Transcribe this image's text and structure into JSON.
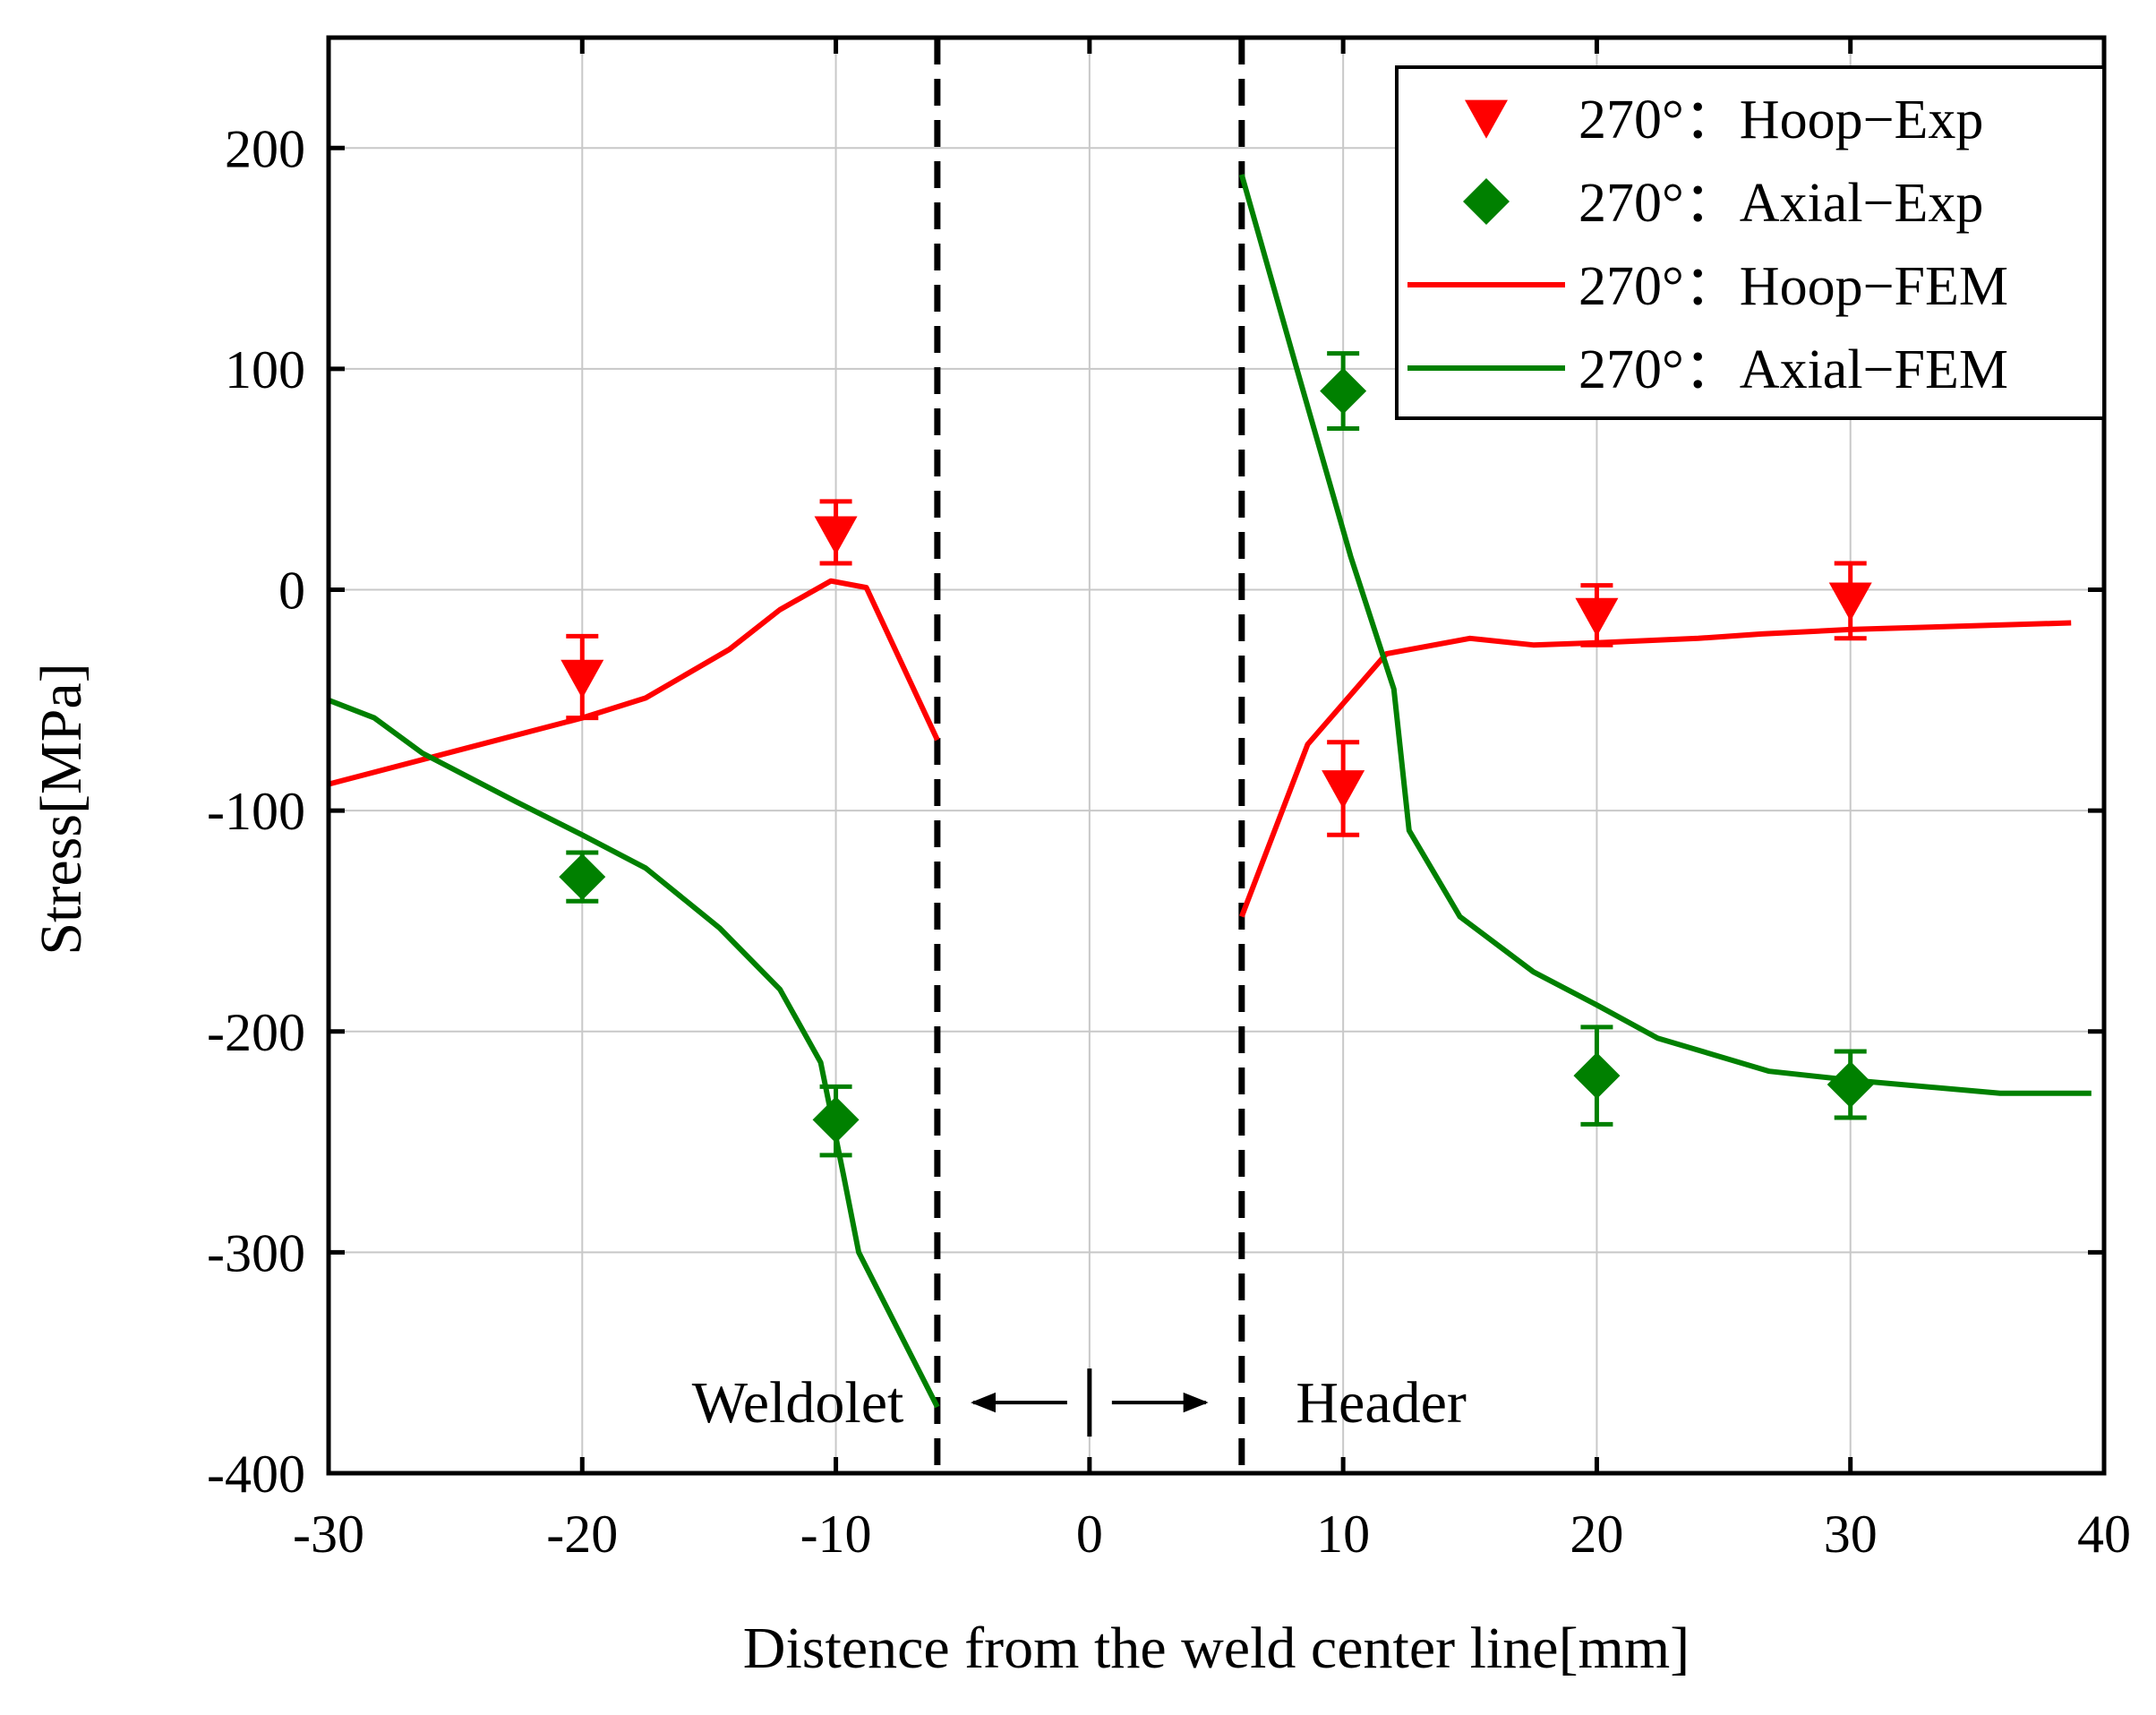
{
  "colors": {
    "hoop": "#ff0000",
    "axial": "#008000",
    "grid": "#c8c8c8",
    "axis": "#000000"
  },
  "chart_data": {
    "type": "scatter",
    "title": "",
    "xlabel": "Distence from the weld center line[mm]",
    "ylabel": "Stress[MPa]",
    "xlim": [
      -30,
      40
    ],
    "ylim": [
      -400,
      250
    ],
    "xticks": [
      -30,
      -20,
      -10,
      0,
      10,
      20,
      30,
      40
    ],
    "yticks": [
      -400,
      -300,
      -200,
      -100,
      0,
      100,
      200
    ],
    "grid": true,
    "legend_position": "top-right",
    "series": [
      {
        "name": "270°：Hoop−Exp",
        "kind": "marker",
        "marker": "triangle-down",
        "color": "#ff0000",
        "points": [
          {
            "x": -20,
            "y": -40,
            "err_low": -58,
            "err_high": -21
          },
          {
            "x": -10,
            "y": 25,
            "err_low": 12,
            "err_high": 40
          },
          {
            "x": 10,
            "y": -90,
            "err_low": -111,
            "err_high": -69
          },
          {
            "x": 20,
            "y": -12,
            "err_low": -25,
            "err_high": 2
          },
          {
            "x": 30,
            "y": -5,
            "err_low": -22,
            "err_high": 12
          }
        ]
      },
      {
        "name": "270°：Axial−Exp",
        "kind": "marker",
        "marker": "diamond",
        "color": "#008000",
        "points": [
          {
            "x": -20,
            "y": -130,
            "err_low": -141,
            "err_high": -119
          },
          {
            "x": -10,
            "y": -240,
            "err_low": -256,
            "err_high": -225
          },
          {
            "x": 10,
            "y": 90,
            "err_low": 73,
            "err_high": 107
          },
          {
            "x": 20,
            "y": -220,
            "err_low": -242,
            "err_high": -198
          },
          {
            "x": 30,
            "y": -224,
            "err_low": -239,
            "err_high": -209
          }
        ]
      },
      {
        "name": "270°：Hoop−FEM",
        "kind": "line",
        "color": "#ff0000",
        "segments": [
          [
            [
              -30,
              -88
            ],
            [
              -26,
              -76
            ],
            [
              -20,
              -58
            ],
            [
              -17.5,
              -49
            ],
            [
              -14.2,
              -27
            ],
            [
              -12.2,
              -9
            ],
            [
              -10.2,
              4
            ],
            [
              -8.8,
              1
            ],
            [
              -6,
              -68
            ]
          ],
          [
            [
              6,
              -148
            ],
            [
              8.6,
              -70
            ],
            [
              11.7,
              -29
            ],
            [
              15,
              -22
            ],
            [
              17.5,
              -25
            ],
            [
              20,
              -24
            ],
            [
              24,
              -22
            ],
            [
              26.5,
              -20
            ],
            [
              30,
              -18
            ],
            [
              38.7,
              -15
            ]
          ]
        ]
      },
      {
        "name": "270°：Axial−FEM",
        "kind": "line",
        "color": "#008000",
        "segments": [
          [
            [
              -30,
              -50
            ],
            [
              -28.2,
              -58
            ],
            [
              -26.3,
              -74
            ],
            [
              -22.6,
              -96
            ],
            [
              -20,
              -111
            ],
            [
              -17.5,
              -126
            ],
            [
              -14.6,
              -153
            ],
            [
              -12.2,
              -181
            ],
            [
              -10.6,
              -214
            ],
            [
              -9.7,
              -265
            ],
            [
              -9.1,
              -300
            ],
            [
              -6,
              -370
            ]
          ],
          [
            [
              6,
              188
            ],
            [
              8.1,
              103
            ],
            [
              10.3,
              15
            ],
            [
              12,
              -45
            ],
            [
              12.6,
              -109
            ],
            [
              14.6,
              -148
            ],
            [
              17.5,
              -173
            ],
            [
              20,
              -188
            ],
            [
              22.4,
              -203
            ],
            [
              26.8,
              -218
            ],
            [
              30,
              -222
            ],
            [
              35.9,
              -228
            ],
            [
              39.5,
              -228
            ]
          ]
        ]
      }
    ],
    "annotations": {
      "left_region": "Weldolet",
      "right_region": "Header",
      "boundaries": [
        -6,
        6
      ],
      "center_marker_x": 0,
      "arrow_y": -368
    }
  }
}
